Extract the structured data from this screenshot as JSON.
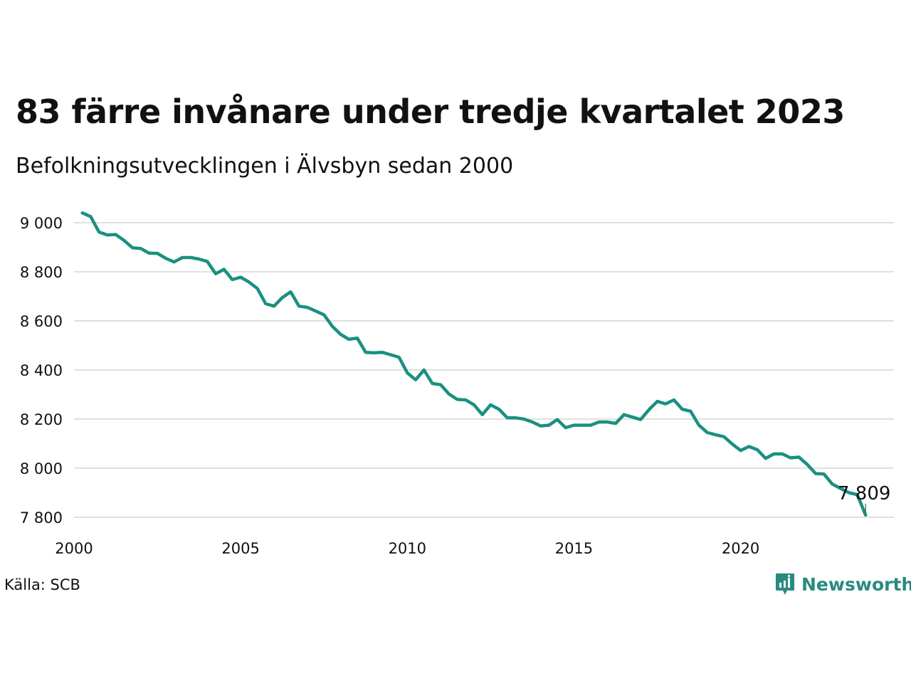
{
  "title": "83 färre invånare under tredje kvartalet 2023",
  "subtitle": "Befolkningsutvecklingen i Älvsbyn sedan 2000",
  "source": "Källa: SCB",
  "brand": "Newsworthy",
  "colors": {
    "line": "#1a9080",
    "grid": "#e0e0e0",
    "text": "#111111",
    "brand": "#2a8a7f"
  },
  "chart_data": {
    "type": "line",
    "title": "83 färre invånare under tredje kvartalet 2023",
    "xlabel": "",
    "ylabel": "",
    "xlim": [
      2000,
      2024.6
    ],
    "ylim": [
      7800,
      9000
    ],
    "grid": true,
    "x_ticks": [
      2000,
      2005,
      2010,
      2015,
      2020
    ],
    "x_tick_labels": [
      "2000",
      "2005",
      "2010",
      "2015",
      "2020"
    ],
    "y_ticks": [
      7800,
      8000,
      8200,
      8400,
      8600,
      8800,
      9000
    ],
    "y_tick_labels": [
      "7 800",
      "8 000",
      "8 200",
      "8 400",
      "8 600",
      "8 800",
      "9 000"
    ],
    "end_label": "7 809",
    "series": [
      {
        "x": [
          2000.25,
          2000.5,
          2000.75,
          2001.0,
          2001.25,
          2001.5,
          2001.75,
          2002.0,
          2002.25,
          2002.5,
          2002.75,
          2003.0,
          2003.25,
          2003.5,
          2003.75,
          2004.0,
          2004.25,
          2004.5,
          2004.75,
          2005.0,
          2005.25,
          2005.5,
          2005.75,
          2006.0,
          2006.25,
          2006.5,
          2006.75,
          2007.0,
          2007.25,
          2007.5,
          2007.75,
          2008.0,
          2008.25,
          2008.5,
          2008.75,
          2009.0,
          2009.25,
          2009.5,
          2009.75,
          2010.0,
          2010.25,
          2010.5,
          2010.75,
          2011.0,
          2011.25,
          2011.5,
          2011.75,
          2012.0,
          2012.25,
          2012.5,
          2012.75,
          2013.0,
          2013.25,
          2013.5,
          2013.75,
          2014.0,
          2014.25,
          2014.5,
          2014.75,
          2015.0,
          2015.25,
          2015.5,
          2015.75,
          2016.0,
          2016.25,
          2016.5,
          2016.75,
          2017.0,
          2017.25,
          2017.5,
          2017.75,
          2018.0,
          2018.25,
          2018.5,
          2018.75,
          2019.0,
          2019.25,
          2019.5,
          2019.75,
          2020.0,
          2020.25,
          2020.5,
          2020.75,
          2021.0,
          2021.25,
          2021.5,
          2021.75,
          2022.0,
          2022.25,
          2022.5,
          2022.75,
          2023.0,
          2023.25,
          2023.5,
          2023.75
        ],
        "values": [
          9040,
          9025,
          8962,
          8950,
          8952,
          8928,
          8898,
          8895,
          8876,
          8875,
          8855,
          8840,
          8858,
          8858,
          8852,
          8842,
          8792,
          8810,
          8768,
          8778,
          8758,
          8732,
          8670,
          8660,
          8695,
          8718,
          8660,
          8655,
          8640,
          8625,
          8578,
          8545,
          8525,
          8530,
          8472,
          8470,
          8472,
          8462,
          8452,
          8388,
          8360,
          8400,
          8345,
          8340,
          8302,
          8280,
          8278,
          8258,
          8218,
          8258,
          8240,
          8205,
          8205,
          8200,
          8188,
          8172,
          8175,
          8198,
          8165,
          8175,
          8175,
          8175,
          8188,
          8188,
          8182,
          8218,
          8208,
          8198,
          8238,
          8272,
          8262,
          8278,
          8240,
          8232,
          8175,
          8145,
          8136,
          8128,
          8098,
          8072,
          8088,
          8075,
          8040,
          8058,
          8058,
          8042,
          8045,
          8015,
          7978,
          7976,
          7935,
          7917,
          7900,
          7892,
          7809
        ]
      }
    ]
  }
}
